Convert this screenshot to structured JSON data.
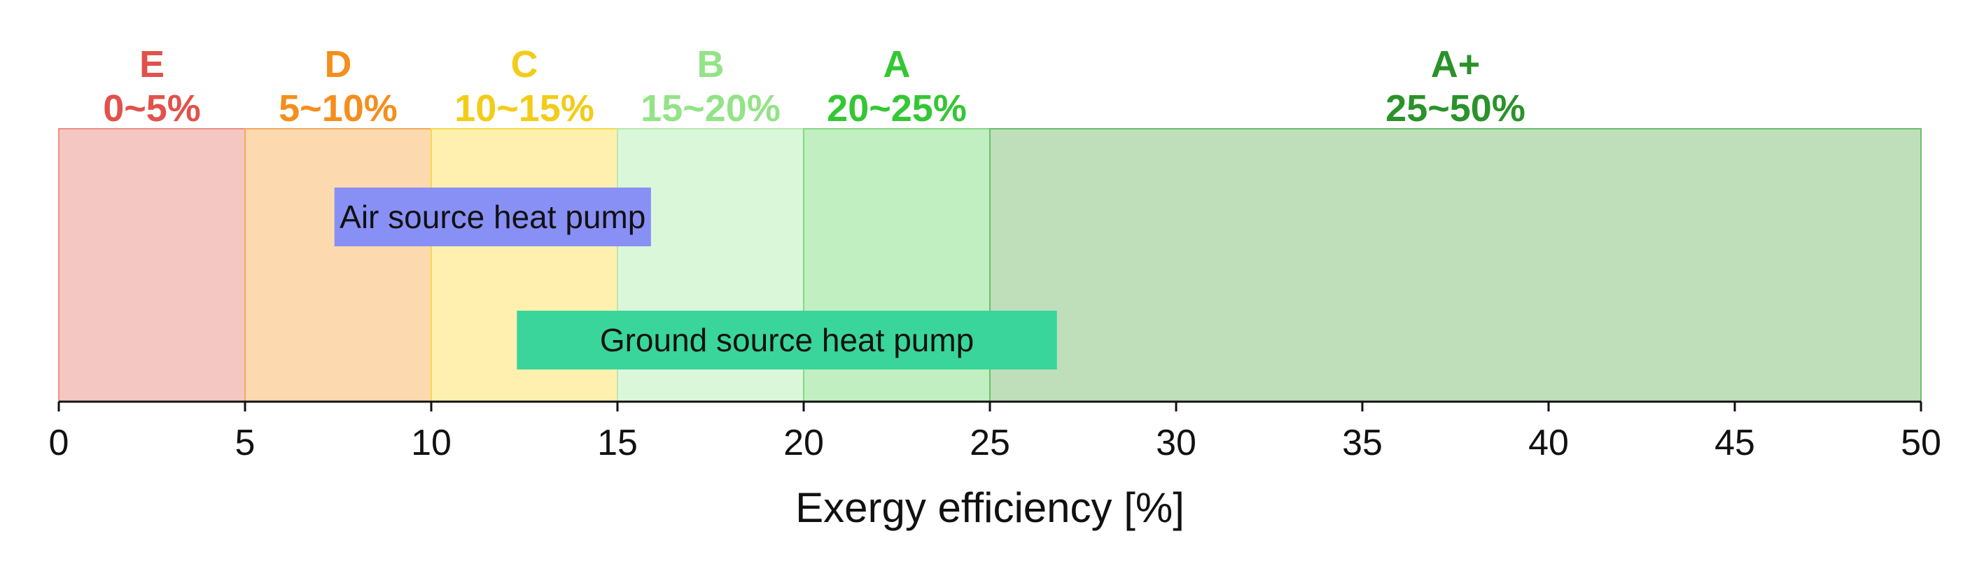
{
  "chart_data": {
    "type": "bar",
    "orientation": "horizontal",
    "xlabel": "Exergy efficiency [%]",
    "ylabel": "",
    "xlim": [
      0,
      50
    ],
    "xticks": [
      "0",
      "5",
      "10",
      "15",
      "20",
      "25",
      "30",
      "35",
      "40",
      "45",
      "50"
    ],
    "grid": false,
    "zones": [
      {
        "grade": "E",
        "range_label": "0~5%",
        "start": 0,
        "end": 5,
        "fill": "#f4c7c3",
        "edge": "#f08c84",
        "text_color": "#e1524a"
      },
      {
        "grade": "D",
        "range_label": "5~10%",
        "start": 5,
        "end": 10,
        "fill": "#fdd9b0",
        "edge": "#f5a95c",
        "text_color": "#f58e1d"
      },
      {
        "grade": "C",
        "range_label": "10~15%",
        "start": 10,
        "end": 15,
        "fill": "#fff0b0",
        "edge": "#f5d94a",
        "text_color": "#f2cc17"
      },
      {
        "grade": "B",
        "range_label": "15~20%",
        "start": 15,
        "end": 20,
        "fill": "#dbf7d9",
        "edge": "#b9e8b4",
        "text_color": "#93e387"
      },
      {
        "grade": "A",
        "range_label": "20~25%",
        "start": 20,
        "end": 25,
        "fill": "#c1efc1",
        "edge": "#86d886",
        "text_color": "#34c734"
      },
      {
        "grade": "A+",
        "range_label": "25~50%",
        "start": 25,
        "end": 50,
        "fill": "#bfdfbb",
        "edge": "#6bbf6b",
        "text_color": "#2a922a"
      }
    ],
    "bars": [
      {
        "label": "Air source heat pump",
        "start": 7.4,
        "end": 15.9,
        "color": "#8890f5"
      },
      {
        "label": "Ground source heat pump",
        "start": 12.3,
        "end": 26.8,
        "color": "#3ad59a"
      }
    ]
  }
}
